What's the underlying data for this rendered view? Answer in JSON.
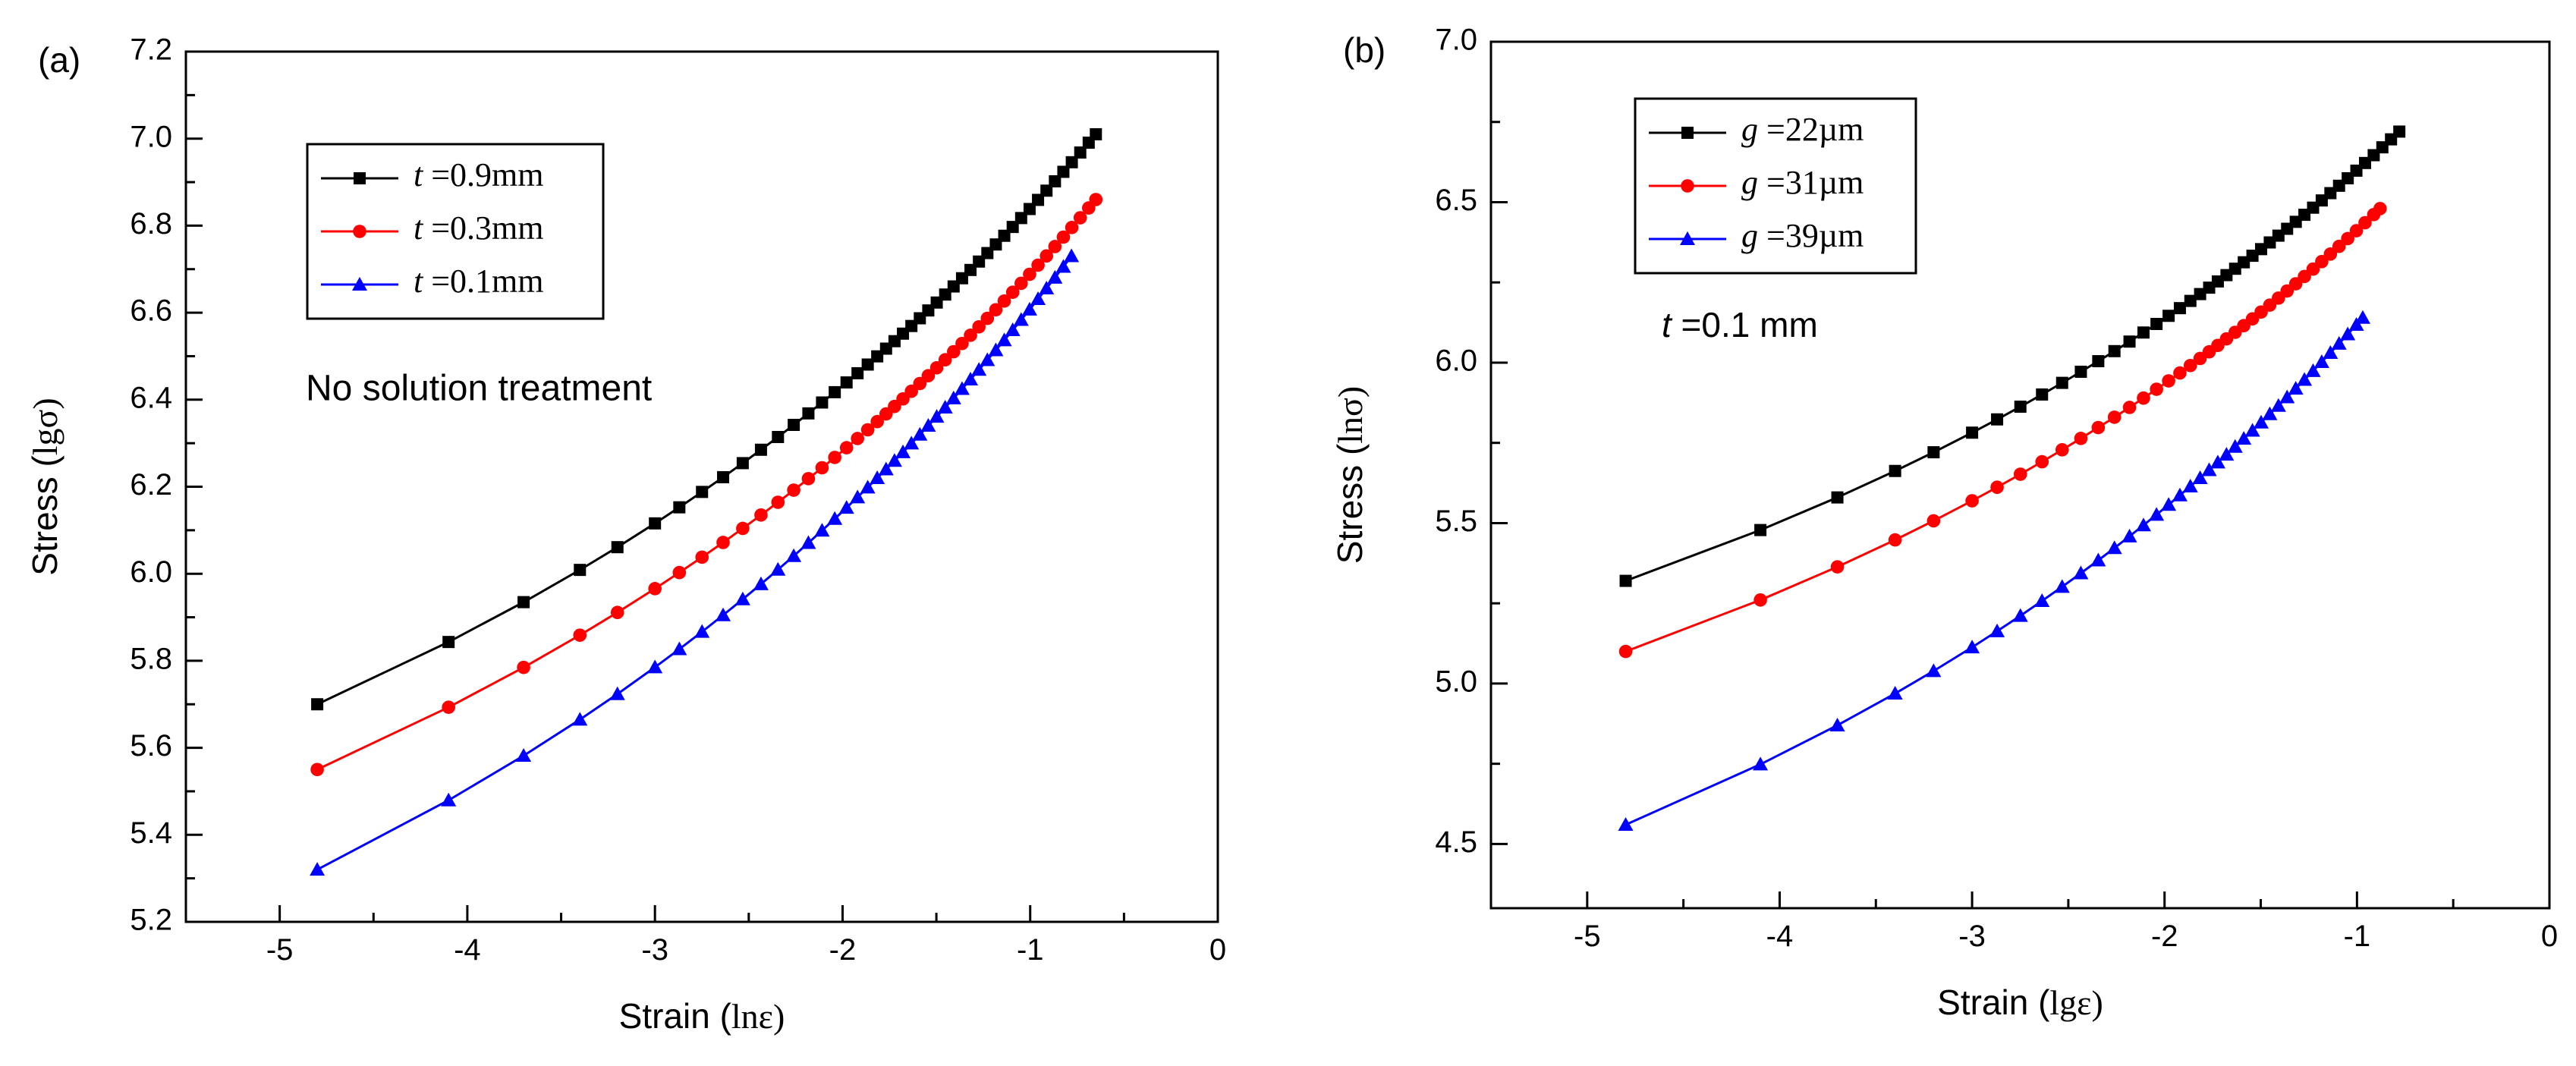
{
  "chart_data": [
    {
      "panel_label": "(a)",
      "type": "line",
      "xlabel": "Strain (",
      "xlabel_sym": "lnε",
      "ylabel": "Stress (",
      "ylabel_sym": "lgσ",
      "xlim": [
        -5.5,
        0
      ],
      "ylim": [
        5.2,
        7.2
      ],
      "xticks": [
        "-5",
        "-4",
        "-3",
        "-2",
        "-1",
        "0"
      ],
      "yticks": [
        "5.2",
        "5.4",
        "5.6",
        "5.8",
        "6.0",
        "6.2",
        "6.4",
        "6.6",
        "6.8",
        "7.0",
        "7.2"
      ],
      "annotation": "No solution treatment",
      "legend_position": "top-left",
      "series": [
        {
          "name": "t =0.9mm",
          "var": "t",
          "rest": " =0.9mm",
          "color": "#000000",
          "marker": "square",
          "x_start": -4.8,
          "x_end": -0.65,
          "y_start": 5.7,
          "y_end": 7.01
        },
        {
          "name": "t =0.3mm",
          "var": "t",
          "rest": " =0.3mm",
          "color": "#ff0000",
          "marker": "circle",
          "x_start": -4.8,
          "x_end": -0.65,
          "y_start": 5.55,
          "y_end": 6.86
        },
        {
          "name": "t =0.1mm",
          "var": "t",
          "rest": " =0.1mm",
          "color": "#0000ff",
          "marker": "triangle",
          "x_start": -4.8,
          "x_end": -0.78,
          "y_start": 5.32,
          "y_end": 6.73
        }
      ]
    },
    {
      "panel_label": "(b)",
      "type": "line",
      "xlabel": "Strain (",
      "xlabel_sym": "lgε",
      "ylabel": "Stress (",
      "ylabel_sym": "lnσ",
      "xlim": [
        -5.5,
        0
      ],
      "ylim": [
        4.3,
        7.0
      ],
      "xticks": [
        "-5",
        "-4",
        "-3",
        "-2",
        "-1",
        "0"
      ],
      "yticks": [
        "4.5",
        "5.0",
        "5.5",
        "6.0",
        "6.5",
        "7.0"
      ],
      "annotation_var": "t",
      "annotation_rest": " =0.1 mm",
      "legend_position": "top-left",
      "series": [
        {
          "name": "g =22µm",
          "var": "g",
          "rest": " =22µm",
          "color": "#000000",
          "marker": "square",
          "x_start": -4.8,
          "x_end": -0.78,
          "y_start": 5.32,
          "y_end": 6.72
        },
        {
          "name": "g =31µm",
          "var": "g",
          "rest": " =31µm",
          "color": "#ff0000",
          "marker": "circle",
          "x_start": -4.8,
          "x_end": -0.88,
          "y_start": 5.1,
          "y_end": 6.48
        },
        {
          "name": "g =39µm",
          "var": "g",
          "rest": " =39µm",
          "color": "#0000ff",
          "marker": "triangle",
          "x_start": -4.8,
          "x_end": -0.97,
          "y_start": 4.56,
          "y_end": 6.14
        }
      ]
    }
  ]
}
